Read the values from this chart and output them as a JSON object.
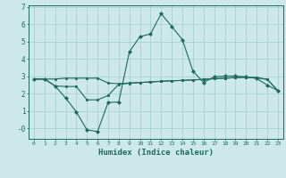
{
  "title": "",
  "xlabel": "Humidex (Indice chaleur)",
  "ylabel": "",
  "bg_color": "#cce8e8",
  "grid_color": "#aacfcf",
  "line_color": "#1a6b5a",
  "x_values": [
    0,
    1,
    2,
    3,
    4,
    5,
    6,
    7,
    8,
    9,
    10,
    11,
    12,
    13,
    14,
    15,
    16,
    17,
    18,
    19,
    20,
    21,
    22,
    23
  ],
  "line1": [
    2.85,
    2.85,
    2.85,
    2.9,
    2.9,
    2.9,
    2.9,
    2.62,
    2.58,
    2.62,
    2.65,
    2.68,
    2.72,
    2.75,
    2.77,
    2.8,
    2.83,
    2.87,
    2.9,
    2.93,
    2.95,
    2.93,
    2.83,
    2.18
  ],
  "line2": [
    2.85,
    2.85,
    2.45,
    1.75,
    0.95,
    -0.08,
    -0.18,
    1.5,
    1.52,
    4.42,
    5.3,
    5.45,
    6.62,
    5.88,
    5.12,
    3.3,
    2.65,
    2.98,
    3.02,
    3.02,
    2.98,
    2.88,
    2.5,
    2.18
  ],
  "line3": [
    2.85,
    2.85,
    2.45,
    2.42,
    2.42,
    1.65,
    1.65,
    1.9,
    2.55,
    2.6,
    2.65,
    2.68,
    2.72,
    2.75,
    2.77,
    2.8,
    2.83,
    2.87,
    2.9,
    2.93,
    2.95,
    2.93,
    2.83,
    2.18
  ],
  "ylim": [
    -0.6,
    7.1
  ],
  "xlim": [
    -0.5,
    23.5
  ],
  "yticks": [
    0,
    1,
    2,
    3,
    4,
    5,
    6,
    7
  ],
  "ytick_labels": [
    "-0",
    "1",
    "2",
    "3",
    "4",
    "5",
    "6",
    "7"
  ]
}
